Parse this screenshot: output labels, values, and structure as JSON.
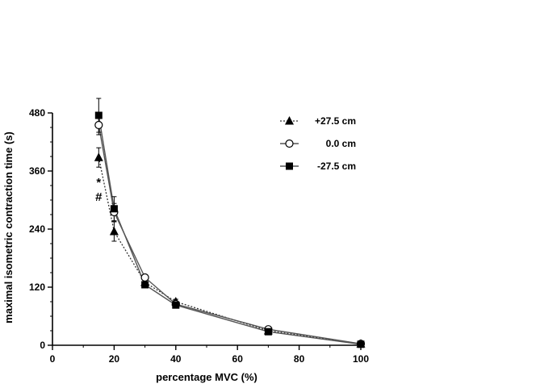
{
  "chart_data": {
    "type": "line",
    "title": "",
    "xlabel": "percentage MVC (%)",
    "ylabel": "maximal isometric contraction time (s)",
    "xlim": [
      0,
      100
    ],
    "ylim": [
      0,
      480
    ],
    "xticks": [
      0,
      20,
      40,
      60,
      80,
      100
    ],
    "xtick_labels": [
      "0",
      "20",
      "40",
      "60",
      "80",
      "100"
    ],
    "yticks": [
      0,
      120,
      240,
      360,
      480
    ],
    "ytick_labels": [
      "0",
      "120",
      "240",
      "360",
      "480"
    ],
    "legend_position": "top-right",
    "grid": false,
    "series": [
      {
        "name": "+27.5 cm",
        "marker": "triangle",
        "line_style": "dotted",
        "x": [
          15,
          20,
          30,
          40,
          70,
          100
        ],
        "y": [
          388,
          235,
          130,
          90,
          30,
          3
        ],
        "err": [
          20,
          20,
          6,
          5,
          4,
          2
        ]
      },
      {
        "name": "0.0 cm",
        "marker": "open-circle",
        "line_style": "solid",
        "x": [
          15,
          20,
          30,
          40,
          70,
          100
        ],
        "y": [
          455,
          275,
          140,
          85,
          33,
          3
        ],
        "err": [
          20,
          18,
          6,
          5,
          4,
          2
        ]
      },
      {
        "name": "-27.5 cm",
        "marker": "filled-square",
        "line_style": "solid",
        "x": [
          15,
          20,
          30,
          40,
          70,
          100
        ],
        "y": [
          475,
          282,
          125,
          83,
          28,
          2
        ],
        "err": [
          35,
          25,
          6,
          5,
          4,
          2
        ]
      }
    ],
    "annotations": [
      {
        "text": "*",
        "x": 15,
        "y": 328
      },
      {
        "text": "#",
        "x": 15,
        "y": 298
      }
    ]
  }
}
